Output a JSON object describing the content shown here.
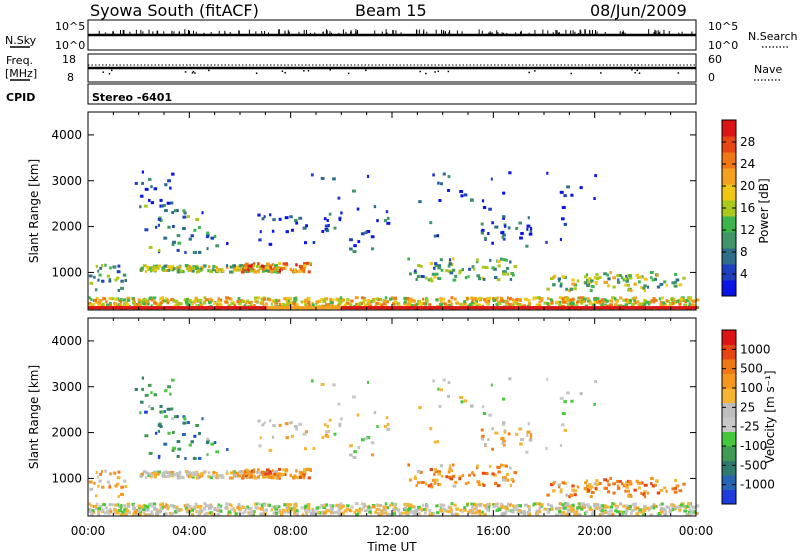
{
  "header": {
    "station": "Syowa South (fitACF)",
    "beam": "Beam 15",
    "date": "08/Jun/2009"
  },
  "status_panels": {
    "nsky": {
      "label": "N.Sky",
      "left_ticks": [
        "10^5",
        "10^0"
      ],
      "right_label": "N.Search",
      "right_ticks": [
        "10^5",
        "10^0"
      ]
    },
    "freq": {
      "label_line1": "Freq.",
      "label_line2": "[MHz]",
      "left_ticks": [
        "18",
        "8"
      ],
      "right_label": "Nave",
      "right_ticks": [
        "60",
        "0"
      ]
    },
    "cpid": {
      "label": "CPID",
      "value": "Stereo -6401"
    }
  },
  "chart_data": [
    {
      "type": "heatmap",
      "panel": "power",
      "ylabel": "Slant Range [km]",
      "yticks": [
        1000,
        2000,
        3000,
        4000
      ],
      "ylim": [
        180,
        4500
      ],
      "colorbar": {
        "label": "Power [dB]",
        "ticks": [
          4,
          8,
          12,
          16,
          20,
          24,
          28
        ],
        "colors": [
          "#0a14e6",
          "#1e3fbe",
          "#2f6e8a",
          "#3f9468",
          "#3cb44b",
          "#a8c81e",
          "#f0c814",
          "#f5a01e",
          "#f07814",
          "#e64614",
          "#dc1414"
        ]
      }
    },
    {
      "type": "heatmap",
      "panel": "velocity",
      "ylabel": "Slant Range [km]",
      "yticks": [
        1000,
        2000,
        3000,
        4000
      ],
      "ylim": [
        180,
        4500
      ],
      "colorbar": {
        "label": "Velocity [m s⁻¹]",
        "ticks": [
          "1000",
          "500",
          "100",
          "25",
          "-25",
          "-100",
          "-500",
          "-1000"
        ],
        "colors": [
          "#1e3cdc",
          "#2864b4",
          "#2f7a6e",
          "#3f9a55",
          "#46c83c",
          "#c8c8c8",
          "#bebebe",
          "#f5b432",
          "#f5961e",
          "#f07814",
          "#e64614",
          "#dc1414"
        ]
      }
    }
  ],
  "time_axis": {
    "xlabel": "Time UT",
    "ticks": [
      "00:00",
      "04:00",
      "08:00",
      "12:00",
      "16:00",
      "20:00",
      "00:00"
    ]
  }
}
